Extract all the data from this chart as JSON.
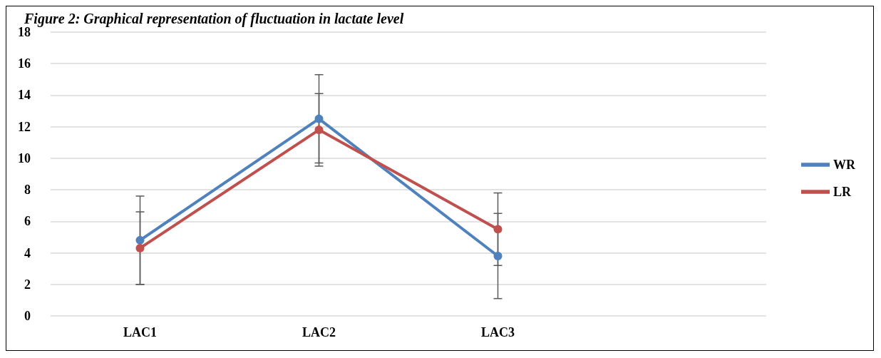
{
  "chart_data": {
    "type": "line",
    "title": "Figure 2: Graphical representation of fluctuation in lactate level",
    "categories": [
      "LAC1",
      "LAC2",
      "LAC3",
      null
    ],
    "series": [
      {
        "name": "WR",
        "color": "#4f81bd",
        "values": [
          4.8,
          12.5,
          3.8,
          null
        ],
        "errors": [
          2.8,
          2.8,
          2.7,
          null
        ]
      },
      {
        "name": "LR",
        "color": "#c0504d",
        "values": [
          4.3,
          11.8,
          5.5,
          null
        ],
        "errors": [
          2.3,
          2.3,
          2.3,
          null
        ]
      }
    ],
    "ylim": [
      0,
      18
    ],
    "yticks": [
      0,
      2,
      4,
      6,
      8,
      10,
      12,
      14,
      16,
      18
    ],
    "grid": "y",
    "legend": "right",
    "marker": "circle",
    "line_style": "solid"
  }
}
